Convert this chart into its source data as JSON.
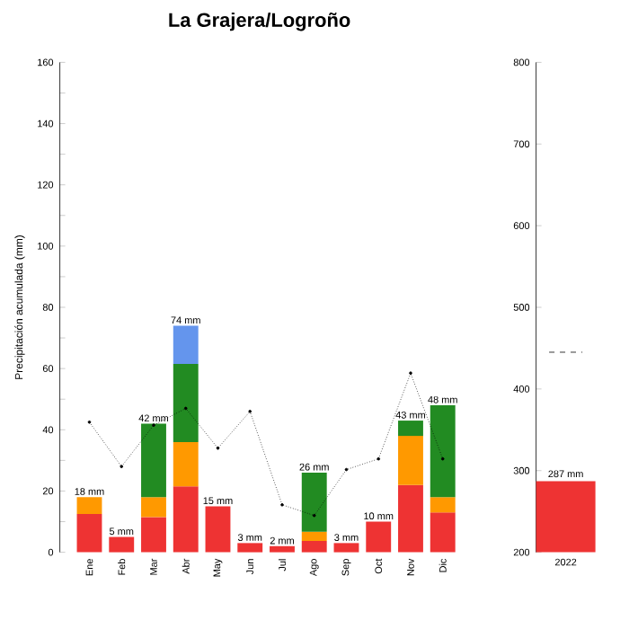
{
  "chart_data": [
    {
      "type": "bar",
      "title": "La Grajera/Logroño",
      "ylabel": "Precipitación acumulada (mm)",
      "stacked": true,
      "categories": [
        "Ene",
        "Feb",
        "Mar",
        "Abr",
        "May",
        "Jun",
        "Jul",
        "Ago",
        "Sep",
        "Oct",
        "Nov",
        "Dic"
      ],
      "series": [
        {
          "color": "#ee3333",
          "values": [
            12.5,
            5,
            11.5,
            21.5,
            15,
            3,
            2,
            3.7,
            3,
            10,
            22,
            13
          ]
        },
        {
          "color": "#ff9900",
          "values": [
            5.5,
            null,
            6.5,
            14.5,
            null,
            null,
            null,
            3,
            null,
            null,
            16,
            5
          ]
        },
        {
          "color": "#228b22",
          "values": [
            null,
            null,
            24,
            25.5,
            null,
            null,
            null,
            19.3,
            null,
            null,
            5,
            30
          ]
        },
        {
          "color": "#6495ed",
          "values": [
            null,
            null,
            null,
            12.5,
            null,
            null,
            null,
            null,
            null,
            null,
            null,
            null
          ]
        },
        {
          "type": "line",
          "color": "#000000",
          "line_style": "dotted",
          "marker": "circle",
          "values": [
            42.5,
            28,
            41.5,
            47,
            34,
            46,
            15.5,
            12,
            27,
            30.5,
            58.5,
            30.5
          ]
        }
      ],
      "totals": [
        "18 mm",
        "5 mm",
        "42 mm",
        "74 mm",
        "15 mm",
        "3 mm",
        "2 mm",
        "26 mm",
        "3 mm",
        "10 mm",
        "43 mm",
        "48 mm"
      ],
      "ylim": [
        0,
        160
      ],
      "yticks": [
        0,
        {
          "value": 10,
          "label": null
        },
        20,
        {
          "value": 30,
          "label": null
        },
        40,
        {
          "value": 50,
          "label": null
        },
        60,
        {
          "value": 70,
          "label": null
        },
        80,
        {
          "value": 90,
          "label": null
        },
        100,
        {
          "value": 110,
          "label": null
        },
        120,
        {
          "value": 130,
          "label": null
        },
        140,
        {
          "value": 150,
          "label": null
        },
        160
      ]
    },
    {
      "type": "bar",
      "categories": [
        "2022"
      ],
      "values": [
        287
      ],
      "color": "#ee3333",
      "value_labels": [
        "287 mm"
      ],
      "ylim": [
        200,
        800
      ],
      "yticks": [
        200,
        300,
        400,
        500,
        600,
        700,
        800
      ],
      "ref_lines": [
        {
          "axis": "y",
          "value": 445,
          "color": "#000000",
          "line_style": "dashed"
        }
      ]
    }
  ]
}
